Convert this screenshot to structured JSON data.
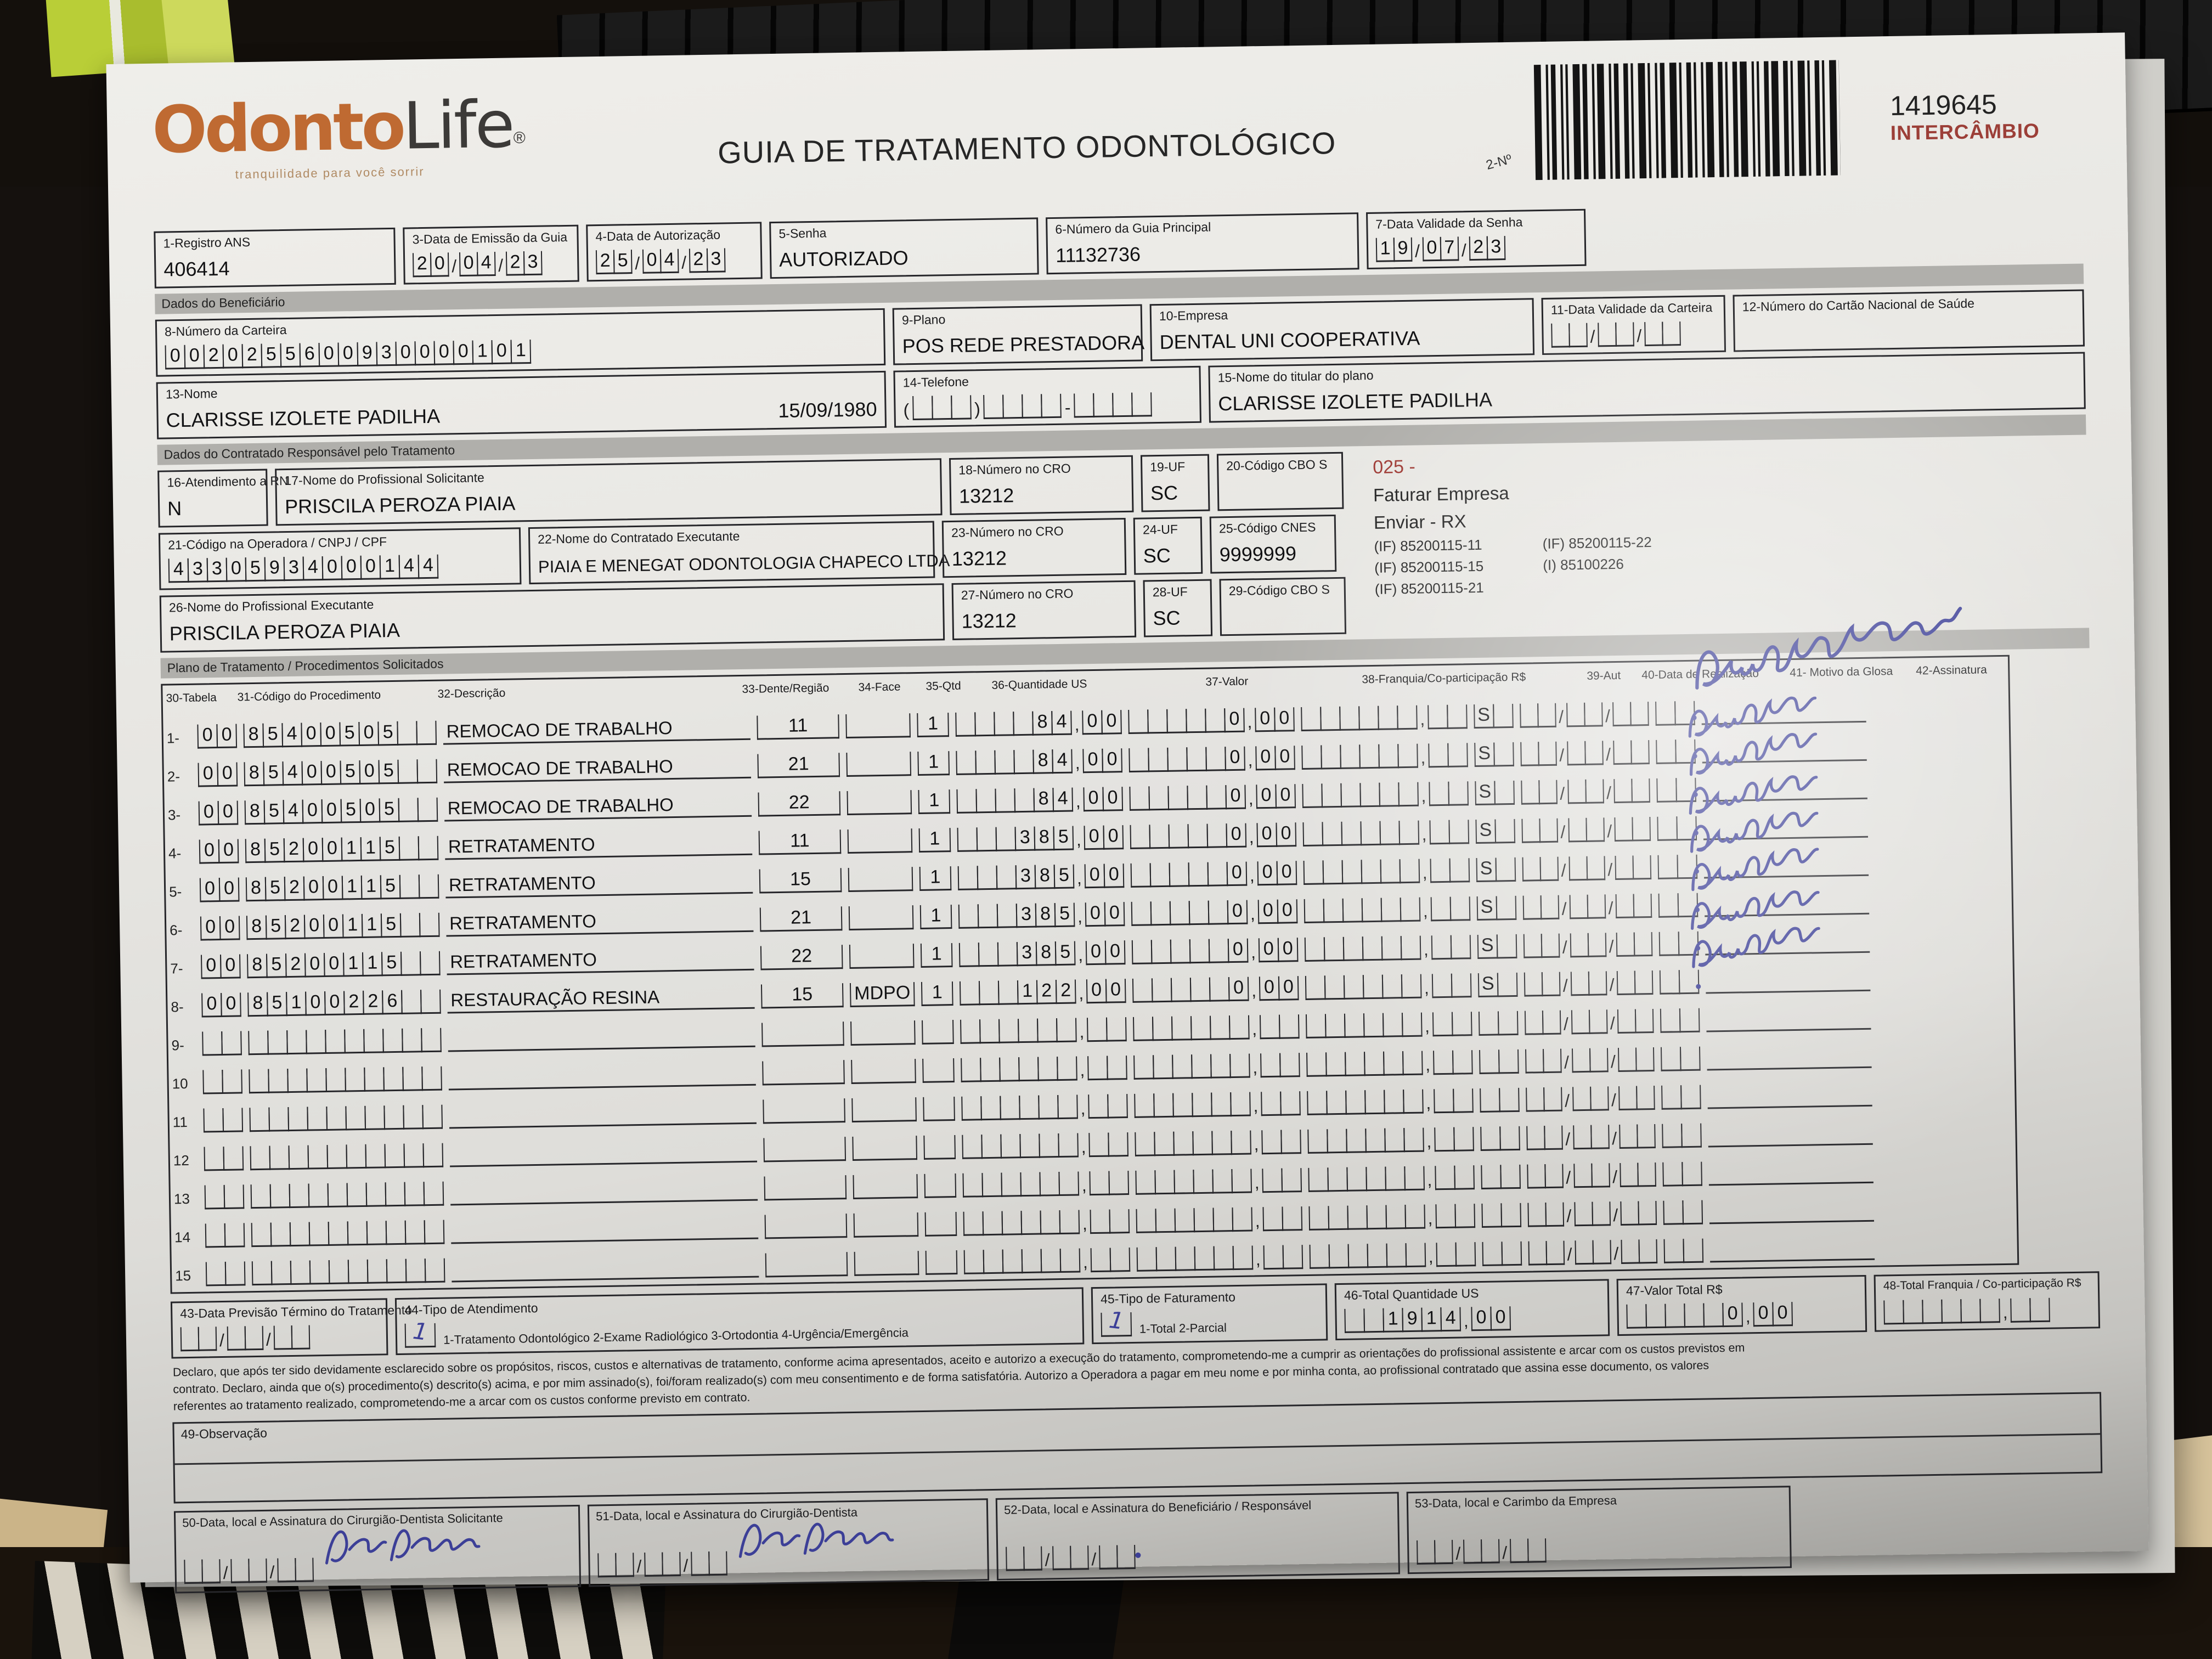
{
  "header": {
    "logo_part1": "Odonto",
    "logo_part2": "Life",
    "logo_reg": "®",
    "tagline": "tranquilidade para você sorrir",
    "title": "GUIA DE TRATAMENTO ODONTOLÓGICO",
    "barcode_label": "2-Nº",
    "guide_number": "1419645",
    "intercambio": "INTERCÂMBIO"
  },
  "sections": {
    "beneficiario": "Dados do Beneficiário",
    "contratado": "Dados do Contratado Responsável pelo Tratamento",
    "plano": "Plano de Tratamento / Procedimentos Solicitados"
  },
  "fields": {
    "f1": {
      "label": "1-Registro ANS",
      "value": "406414"
    },
    "f3": {
      "label": "3-Data de Emissão da Guia",
      "value": "200423"
    },
    "f4": {
      "label": "4-Data de Autorização",
      "value": "250423"
    },
    "f5": {
      "label": "5-Senha",
      "value": "AUTORIZADO"
    },
    "f6": {
      "label": "6-Número da Guia Principal",
      "value": "11132736"
    },
    "f7": {
      "label": "7-Data Validade da Senha",
      "value": "190723"
    },
    "f8": {
      "label": "8-Número da Carteira",
      "value": "0020255600930000101"
    },
    "f9": {
      "label": "9-Plano",
      "value": "POS REDE PRESTADORA"
    },
    "f10": {
      "label": "10-Empresa",
      "value": "DENTAL UNI  COOPERATIVA"
    },
    "f11": {
      "label": "11-Data Validade da Carteira",
      "value": ""
    },
    "f12": {
      "label": "12-Número do Cartão Nacional de Saúde",
      "value": ""
    },
    "f13": {
      "label": "13-Nome",
      "value": "CLARISSE IZOLETE PADILHA",
      "birth": "15/09/1980"
    },
    "f14": {
      "label": "14-Telefone",
      "value": ""
    },
    "f15": {
      "label": "15-Nome do titular do plano",
      "value": "CLARISSE IZOLETE PADILHA"
    },
    "f16": {
      "label": "16-Atendimento a RN",
      "value": "N"
    },
    "f17": {
      "label": "17-Nome do Profissional Solicitante",
      "value": "PRISCILA PEROZA PIAIA"
    },
    "f18": {
      "label": "18-Número no CRO",
      "value": "13212"
    },
    "f19": {
      "label": "19-UF",
      "value": "SC"
    },
    "f20": {
      "label": "20-Código CBO S",
      "value": ""
    },
    "f21": {
      "label": "21-Código na Operadora / CNPJ / CPF",
      "value": "43305934000144"
    },
    "f22": {
      "label": "22-Nome do Contratado Executante",
      "value": "PIAIA E MENEGAT ODONTOLOGIA CHAPECO LTDA"
    },
    "f23": {
      "label": "23-Número no CRO",
      "value": "13212"
    },
    "f24": {
      "label": "24-UF",
      "value": "SC"
    },
    "f25": {
      "label": "25-Código CNES",
      "value": "9999999"
    },
    "f26": {
      "label": "26-Nome do Profissional Executante",
      "value": "PRISCILA PEROZA PIAIA"
    },
    "f27": {
      "label": "27-Número no CRO",
      "value": "13212"
    },
    "f28": {
      "label": "28-UF",
      "value": "SC"
    },
    "f29": {
      "label": "29-Código CBO S",
      "value": ""
    }
  },
  "side_notes": {
    "code": "025 -",
    "line1": "Faturar Empresa",
    "line2": "Enviar - RX",
    "if1": "(IF) 85200115-11",
    "if2": "(IF) 85200115-22",
    "if3": "(IF) 85200115-15",
    "i1": "(I) 85100226",
    "if4": "(IF) 85200115-21"
  },
  "table": {
    "headers": [
      "30-Tabela",
      "31-Código do Procedimento",
      "32-Descrição",
      "33-Dente/Região",
      "34-Face",
      "35-Qtd",
      "36-Quantidade US",
      "37-Valor",
      "38-Franquia/Co-participação R$",
      "39-Aut",
      "40-Data de Realização",
      "41- Motivo da Glosa",
      "42-Assinatura"
    ],
    "rows": [
      {
        "n": "1-",
        "tabela": "00",
        "codigo": "85400505",
        "descricao": "REMOCAO DE TRABALHO",
        "dente": "11",
        "face": "",
        "qtd": "1",
        "qus": "84,00",
        "valor": "0,00",
        "franquia": "",
        "aut": "S",
        "data": "",
        "glosa": "",
        "assinatura": "Clarisse Padilha"
      },
      {
        "n": "2-",
        "tabela": "00",
        "codigo": "85400505",
        "descricao": "REMOCAO DE TRABALHO",
        "dente": "21",
        "face": "",
        "qtd": "1",
        "qus": "84,00",
        "valor": "0,00",
        "franquia": "",
        "aut": "S",
        "data": "",
        "glosa": "",
        "assinatura": "Clarisse"
      },
      {
        "n": "3-",
        "tabela": "00",
        "codigo": "85400505",
        "descricao": "REMOCAO DE TRABALHO",
        "dente": "22",
        "face": "",
        "qtd": "1",
        "qus": "84,00",
        "valor": "0,00",
        "franquia": "",
        "aut": "S",
        "data": "",
        "glosa": "",
        "assinatura": "Clarisse"
      },
      {
        "n": "4-",
        "tabela": "00",
        "codigo": "85200115",
        "descricao": "RETRATAMENTO",
        "dente": "11",
        "face": "",
        "qtd": "1",
        "qus": "385,00",
        "valor": "0,00",
        "franquia": "",
        "aut": "S",
        "data": "",
        "glosa": "",
        "assinatura": "Clarisse"
      },
      {
        "n": "5-",
        "tabela": "00",
        "codigo": "85200115",
        "descricao": "RETRATAMENTO",
        "dente": "15",
        "face": "",
        "qtd": "1",
        "qus": "385,00",
        "valor": "0,00",
        "franquia": "",
        "aut": "S",
        "data": "",
        "glosa": "",
        "assinatura": "Clarisse"
      },
      {
        "n": "6-",
        "tabela": "00",
        "codigo": "85200115",
        "descricao": "RETRATAMENTO",
        "dente": "21",
        "face": "",
        "qtd": "1",
        "qus": "385,00",
        "valor": "0,00",
        "franquia": "",
        "aut": "S",
        "data": "",
        "glosa": "",
        "assinatura": "Clarisse"
      },
      {
        "n": "7-",
        "tabela": "00",
        "codigo": "85200115",
        "descricao": "RETRATAMENTO",
        "dente": "22",
        "face": "",
        "qtd": "1",
        "qus": "385,00",
        "valor": "0,00",
        "franquia": "",
        "aut": "S",
        "data": "",
        "glosa": "",
        "assinatura": "Clarisse"
      },
      {
        "n": "8-",
        "tabela": "00",
        "codigo": "85100226",
        "descricao": "RESTAURAÇÃO RESINA",
        "dente": "15",
        "face": "MDPO",
        "qtd": "1",
        "qus": "122,00",
        "valor": "0,00",
        "franquia": "",
        "aut": "S",
        "data": "",
        "glosa": "",
        "assinatura": "Clarisse"
      },
      {
        "n": "9-",
        "tabela": "",
        "codigo": "",
        "descricao": "",
        "dente": "",
        "face": "",
        "qtd": "",
        "qus": "",
        "valor": "",
        "franquia": "",
        "aut": "",
        "data": "",
        "glosa": "",
        "assinatura": ""
      },
      {
        "n": "10",
        "tabela": "",
        "codigo": "",
        "descricao": "",
        "dente": "",
        "face": "",
        "qtd": "",
        "qus": "",
        "valor": "",
        "franquia": "",
        "aut": "",
        "data": "",
        "glosa": "",
        "assinatura": ""
      },
      {
        "n": "11",
        "tabela": "",
        "codigo": "",
        "descricao": "",
        "dente": "",
        "face": "",
        "qtd": "",
        "qus": "",
        "valor": "",
        "franquia": "",
        "aut": "",
        "data": "",
        "glosa": "",
        "assinatura": ""
      },
      {
        "n": "12",
        "tabela": "",
        "codigo": "",
        "descricao": "",
        "dente": "",
        "face": "",
        "qtd": "",
        "qus": "",
        "valor": "",
        "franquia": "",
        "aut": "",
        "data": "",
        "glosa": "",
        "assinatura": ""
      },
      {
        "n": "13",
        "tabela": "",
        "codigo": "",
        "descricao": "",
        "dente": "",
        "face": "",
        "qtd": "",
        "qus": "",
        "valor": "",
        "franquia": "",
        "aut": "",
        "data": "",
        "glosa": "",
        "assinatura": ""
      },
      {
        "n": "14",
        "tabela": "",
        "codigo": "",
        "descricao": "",
        "dente": "",
        "face": "",
        "qtd": "",
        "qus": "",
        "valor": "",
        "franquia": "",
        "aut": "",
        "data": "",
        "glosa": "",
        "assinatura": ""
      },
      {
        "n": "15",
        "tabela": "",
        "codigo": "",
        "descricao": "",
        "dente": "",
        "face": "",
        "qtd": "",
        "qus": "",
        "valor": "",
        "franquia": "",
        "aut": "",
        "data": "",
        "glosa": "",
        "assinatura": ""
      }
    ]
  },
  "totals": {
    "f43": {
      "label": "43-Data Previsão Término do Tratamento",
      "value": ""
    },
    "f44": {
      "label": "44-Tipo de Atendimento",
      "value": "1",
      "options": "1-Tratamento Odontológico  2-Exame Radiológico  3-Ortodontia  4-Urgência/Emergência"
    },
    "f45": {
      "label": "45-Tipo de Faturamento",
      "value": "1",
      "options": "1-Total  2-Parcial"
    },
    "f46": {
      "label": "46-Total Quantidade US",
      "value": "1914,00"
    },
    "f47": {
      "label": "47-Valor Total R$",
      "value": "0,00"
    },
    "f48": {
      "label": "48-Total Franquia / Co-participação R$",
      "value": ""
    }
  },
  "declaration": [
    "Declaro, que após ter sido devidamente esclarecido sobre os propósitos, riscos, custos e alternativas de tratamento, conforme acima apresentados, aceito e autorizo a execução do tratamento, comprometendo-me a cumprir as orientações do profissional assistente e arcar com os custos previstos em",
    "contrato. Declaro, ainda que o(s) procedimento(s) descrito(s) acima, e por mim assinado(s), foi/foram realizado(s) com meu consentimento e de forma satisfatória. Autorizo a Operadora a pagar em meu nome e por minha conta, ao profissional contratado que assina esse documento, os valores",
    "referentes ao tratamento realizado, comprometendo-me a arcar com os custos conforme previsto em contrato."
  ],
  "observacao": {
    "label": "49-Observação"
  },
  "signature_boxes": [
    {
      "label": "50-Data, local e Assinatura do Cirurgião-Dentista Solicitante",
      "signature": "Priscila P. Piaia"
    },
    {
      "label": "51-Data, local e Assinatura do Cirurgião-Dentista",
      "signature": "Priscila P Piaia"
    },
    {
      "label": "52-Data, local e Assinatura do Beneficiário / Responsável",
      "signature": "."
    },
    {
      "label": "53-Data, local e Carimbo da Empresa",
      "signature": ""
    }
  ],
  "colors": {
    "ink_blue": "#3c3f97",
    "accent_red": "#9e3a34",
    "logo_orange": "#bf6a32"
  }
}
